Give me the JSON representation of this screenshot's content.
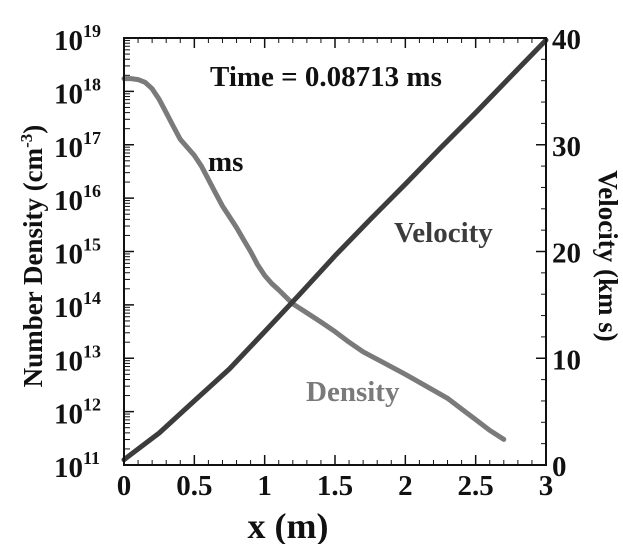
{
  "chart_data": {
    "type": "line",
    "title": "",
    "annotations": {
      "time": "Time = 0.08713 ms",
      "ms_label": "ms",
      "velocity_label": "Velocity",
      "density_label": "Density"
    },
    "xlabel": "x (m)",
    "ylabel_left": "Number Density (cm-3)",
    "ylabel_left_main": "Number Density (cm",
    "ylabel_left_sup": "-3",
    "ylabel_left_close": ")",
    "ylabel_right": "Velocity (km s)",
    "xlim": [
      0,
      3
    ],
    "ylim_left": [
      100000000000.0,
      1e+19
    ],
    "ylim_right": [
      0,
      40
    ],
    "yscale_left": "log",
    "x_ticks": [
      0,
      0.5,
      1,
      1.5,
      2,
      2.5,
      3
    ],
    "x_tick_labels": [
      "0",
      "0.5",
      "1",
      "1.5",
      "2",
      "2.5",
      "3"
    ],
    "y_left_ticks": [
      11,
      12,
      13,
      14,
      15,
      16,
      17,
      18,
      19
    ],
    "y_left_tick_labels": [
      {
        "base": "10",
        "exp": "11"
      },
      {
        "base": "10",
        "exp": "12"
      },
      {
        "base": "10",
        "exp": "13"
      },
      {
        "base": "10",
        "exp": "14"
      },
      {
        "base": "10",
        "exp": "15"
      },
      {
        "base": "10",
        "exp": "16"
      },
      {
        "base": "10",
        "exp": "17"
      },
      {
        "base": "10",
        "exp": "18"
      },
      {
        "base": "10",
        "exp": "19"
      }
    ],
    "y_right_ticks": [
      0,
      10,
      20,
      30,
      40
    ],
    "y_right_tick_labels": [
      "0",
      "10",
      "20",
      "30",
      "40"
    ],
    "colors": {
      "density": "#7a7a7a",
      "velocity": "#3c3c3c",
      "axes": "#111111"
    },
    "series": [
      {
        "axis": "left",
        "x": [
          0,
          0.05,
          0.1,
          0.15,
          0.2,
          0.25,
          0.3,
          0.35,
          0.4,
          0.45,
          0.5,
          0.55,
          0.6,
          0.65,
          0.7,
          0.75,
          0.8,
          0.85,
          0.9,
          0.95,
          1.0,
          1.05,
          1.1,
          1.2,
          1.3,
          1.4,
          1.5,
          1.6,
          1.7,
          1.8,
          1.9,
          2.0,
          2.1,
          2.2,
          2.3,
          2.4,
          2.5,
          2.6,
          2.7
        ],
        "log10_y": [
          18.24,
          18.24,
          18.22,
          18.17,
          18.05,
          17.85,
          17.6,
          17.35,
          17.1,
          16.95,
          16.8,
          16.6,
          16.35,
          16.1,
          15.85,
          15.65,
          15.45,
          15.22,
          15.0,
          14.75,
          14.55,
          14.4,
          14.28,
          14.02,
          13.85,
          13.68,
          13.5,
          13.3,
          13.12,
          12.98,
          12.84,
          12.7,
          12.55,
          12.4,
          12.25,
          12.05,
          11.85,
          11.65,
          11.48
        ]
      },
      {
        "axis": "right",
        "x": [
          0,
          0.25,
          0.5,
          0.75,
          1.0,
          1.25,
          1.5,
          1.75,
          2.0,
          2.25,
          2.5,
          2.75,
          3.0
        ],
        "y": [
          0.5,
          3.0,
          6.0,
          9.0,
          12.5,
          16.0,
          19.6,
          23.0,
          26.3,
          29.7,
          33.0,
          36.4,
          39.8
        ]
      }
    ]
  }
}
